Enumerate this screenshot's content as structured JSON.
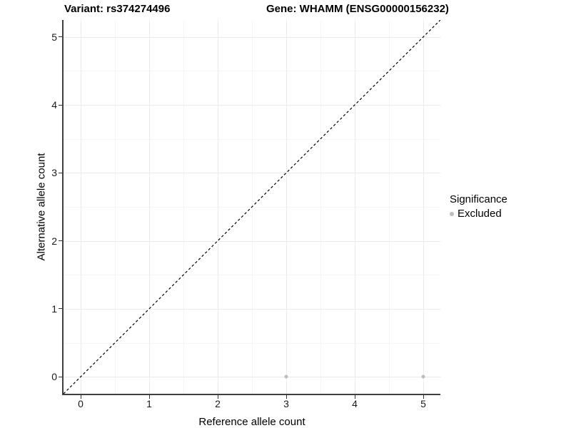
{
  "header": {
    "variant_title": "Variant: rs374274496",
    "gene_title": "Gene: WHAMM (ENSG00000156232)"
  },
  "legend": {
    "title": "Significance",
    "entries": [
      {
        "label": "Excluded",
        "color": "#bdbdbd"
      }
    ]
  },
  "chart_data": {
    "type": "scatter",
    "title": "Variant: rs374274496   Gene: WHAMM (ENSG00000156232)",
    "xlabel": "Reference allele count",
    "ylabel": "Alternative allele count",
    "xlim": [
      -0.25,
      5.25
    ],
    "ylim": [
      -0.25,
      5.25
    ],
    "x_ticks": [
      0,
      1,
      2,
      3,
      4,
      5
    ],
    "y_ticks": [
      0,
      1,
      2,
      3,
      4,
      5
    ],
    "x_minor_ticks": [
      0.5,
      1.5,
      2.5,
      3.5,
      4.5
    ],
    "y_minor_ticks": [
      0.5,
      1.5,
      2.5,
      3.5,
      4.5
    ],
    "grid": true,
    "legend_position": "right",
    "series": [
      {
        "name": "Excluded",
        "color": "#bdbdbd",
        "points": [
          {
            "x": 3,
            "y": 0
          },
          {
            "x": 5,
            "y": 0
          }
        ]
      }
    ],
    "identity_line": {
      "style": "dashed",
      "from": [
        -0.25,
        -0.25
      ],
      "to": [
        5.25,
        5.25
      ],
      "color": "#000000"
    }
  },
  "colors": {
    "background": "#ffffff",
    "grid_major": "#ebebeb",
    "grid_minor": "#f6f6f6",
    "axis_line": "#404040",
    "tick": "#333333",
    "tick_text": "#1a1a1a",
    "title_text": "#000000",
    "point": "#bdbdbd"
  }
}
